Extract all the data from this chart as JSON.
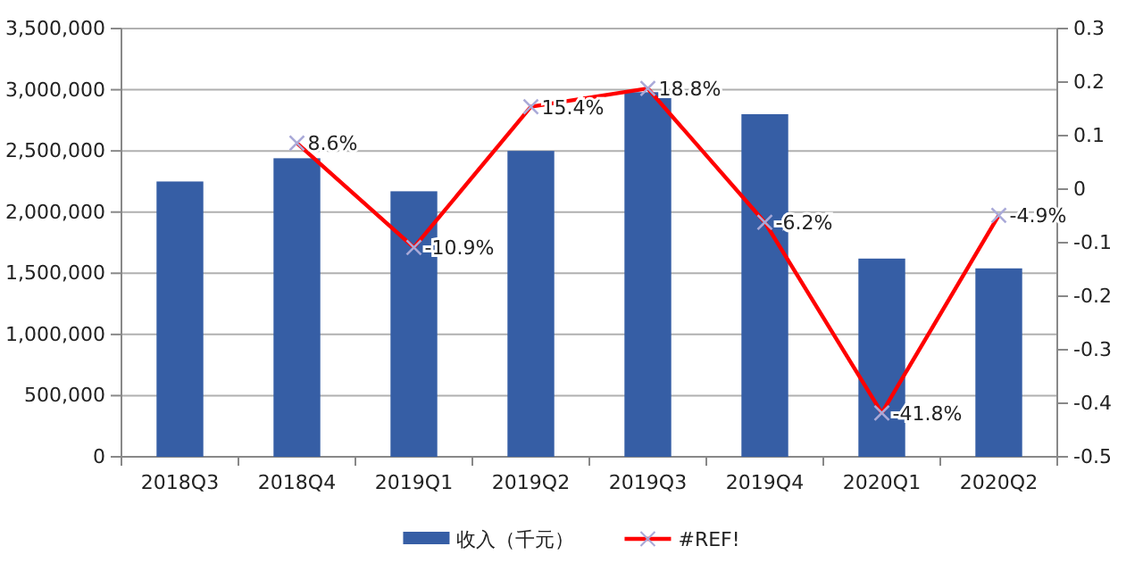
{
  "chart_data": {
    "type": "bar",
    "categories": [
      "2018Q3",
      "2018Q4",
      "2019Q1",
      "2019Q2",
      "2019Q3",
      "2019Q4",
      "2020Q1",
      "2020Q2"
    ],
    "series": [
      {
        "name": "收入（千元）",
        "color": "#365ea5",
        "values": [
          2250000,
          2440000,
          2170000,
          2500000,
          2980000,
          2800000,
          1620000,
          1540000
        ]
      },
      {
        "name": "#REF!",
        "type": "line",
        "axis": "y2",
        "color": "#ff0000",
        "marker": "cross",
        "values": [
          null,
          0.086,
          -0.109,
          0.154,
          0.188,
          -0.062,
          -0.418,
          -0.049
        ],
        "value_labels": [
          null,
          "8.6%",
          "-10.9%",
          "15.4%",
          "18.8%",
          "-6.2%",
          "-41.8%",
          "-4.9%"
        ]
      }
    ],
    "ylim": [
      0,
      3500000
    ],
    "yticks": [
      {
        "value": 0,
        "label": "0"
      },
      {
        "value": 500000,
        "label": "500,000"
      },
      {
        "value": 1000000,
        "label": "1,000,000"
      },
      {
        "value": 1500000,
        "label": "1,500,000"
      },
      {
        "value": 2000000,
        "label": "2,000,000"
      },
      {
        "value": 2500000,
        "label": "2,500,000"
      },
      {
        "value": 3000000,
        "label": "3,000,000"
      },
      {
        "value": 3500000,
        "label": "3,500,000"
      }
    ],
    "y2lim": [
      -0.5,
      0.3
    ],
    "y2ticks": [
      -0.5,
      -0.4,
      -0.3,
      -0.2,
      -0.1,
      0,
      0.1,
      0.2,
      0.3
    ],
    "grid": "y",
    "legend": "bottom"
  }
}
